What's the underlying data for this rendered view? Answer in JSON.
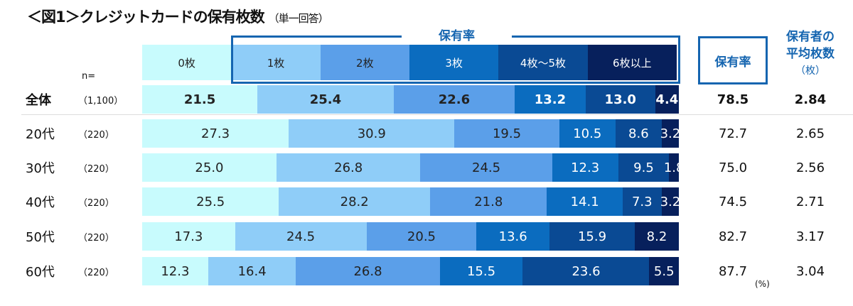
{
  "chart_data": {
    "type": "bar",
    "orientation": "horizontal",
    "stacked": true,
    "title": "＜図1＞クレジットカードの保有枚数",
    "subtitle": "（単一回答）",
    "n_label": "n=",
    "unit": "(%)",
    "holding_group_label": "保有率",
    "rate_header": "保有率",
    "avg_header": [
      "保有者の",
      "平均枚数"
    ],
    "avg_unit": "（枚）",
    "categories": [
      "0枚",
      "1枚",
      "2枚",
      "3枚",
      "4枚～5枚",
      "6枚以上"
    ],
    "colors": [
      "#c8fbfd",
      "#8fcdf8",
      "#5b9fe9",
      "#0b6cbf",
      "#0a4a94",
      "#07205c"
    ],
    "text_colors": [
      "#222222",
      "#222222",
      "#222222",
      "#ffffff",
      "#ffffff",
      "#ffffff"
    ],
    "rows": [
      {
        "group": "全体",
        "n": "（1,100）",
        "values": [
          21.5,
          25.4,
          22.6,
          13.2,
          13.0,
          4.4
        ],
        "rate": "78.5",
        "avg": "2.84"
      },
      {
        "group": "20代",
        "n": "（220）",
        "values": [
          27.3,
          30.9,
          19.5,
          10.5,
          8.6,
          3.2
        ],
        "rate": "72.7",
        "avg": "2.65"
      },
      {
        "group": "30代",
        "n": "（220）",
        "values": [
          25.0,
          26.8,
          24.5,
          12.3,
          9.5,
          1.8
        ],
        "rate": "75.0",
        "avg": "2.56"
      },
      {
        "group": "40代",
        "n": "（220）",
        "values": [
          25.5,
          28.2,
          21.8,
          14.1,
          7.3,
          3.2
        ],
        "rate": "74.5",
        "avg": "2.71"
      },
      {
        "group": "50代",
        "n": "（220）",
        "values": [
          17.3,
          24.5,
          20.5,
          13.6,
          15.9,
          8.2
        ],
        "rate": "82.7",
        "avg": "3.17"
      },
      {
        "group": "60代",
        "n": "（220）",
        "values": [
          12.3,
          16.4,
          26.8,
          15.5,
          23.6,
          5.5
        ],
        "rate": "87.7",
        "avg": "3.04"
      }
    ]
  }
}
